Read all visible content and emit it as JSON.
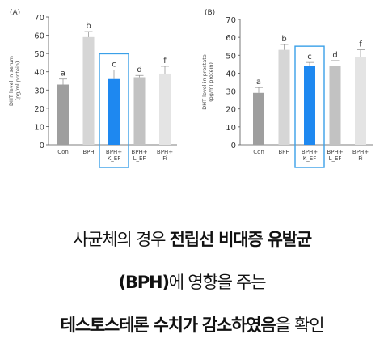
{
  "chart_data": [
    {
      "panel": "(A)",
      "type": "bar",
      "ylabel_line1": "DHT level in serum",
      "ylabel_line2": "(pg/ml protein)",
      "ylim": [
        0,
        70
      ],
      "yticks": [
        0,
        10,
        20,
        30,
        40,
        50,
        60,
        70
      ],
      "categories": [
        "Con",
        "BPH",
        "BPH+\nK_EF",
        "BPH+\nL_EF",
        "BPH+\nFi"
      ],
      "values": [
        33,
        59,
        36,
        37,
        39
      ],
      "errors": [
        3,
        3,
        5,
        1,
        4
      ],
      "significance_letters": [
        "a",
        "b",
        "c",
        "d",
        "f"
      ],
      "bar_colors": [
        "#9e9e9e",
        "#d6d6d6",
        "#1e88f0",
        "#c2c2c2",
        "#e4e4e4"
      ],
      "highlight_index": 2,
      "highlight_color": "#3aa0e8",
      "grid": false
    },
    {
      "panel": "(B)",
      "type": "bar",
      "ylabel_line1": "DHT level in prostate",
      "ylabel_line2": "(pg/ml protein)",
      "ylim": [
        0,
        70
      ],
      "yticks": [
        0,
        10,
        20,
        30,
        40,
        50,
        60,
        70
      ],
      "categories": [
        "Con",
        "BPH",
        "BPH+\nK_EF",
        "BPH+\nL_EF",
        "BPH+\nFi"
      ],
      "values": [
        29,
        53,
        44,
        44,
        49
      ],
      "errors": [
        3,
        3,
        2,
        3,
        4
      ],
      "significance_letters": [
        "a",
        "b",
        "c",
        "d",
        "f"
      ],
      "bar_colors": [
        "#9e9e9e",
        "#d6d6d6",
        "#1e88f0",
        "#c2c2c2",
        "#e4e4e4"
      ],
      "highlight_index": 2,
      "highlight_color": "#3aa0e8",
      "grid": false
    }
  ],
  "caption": {
    "line1_normal": "사균체의 경우 ",
    "line1_bold": "전립선 비대증 유발균",
    "line2_bold": "(BPH)",
    "line2_normal": "에 영향을 주는",
    "line3_bold": "테스토스테론 수치가 감소하였음",
    "line3_normal": "을 확인"
  }
}
